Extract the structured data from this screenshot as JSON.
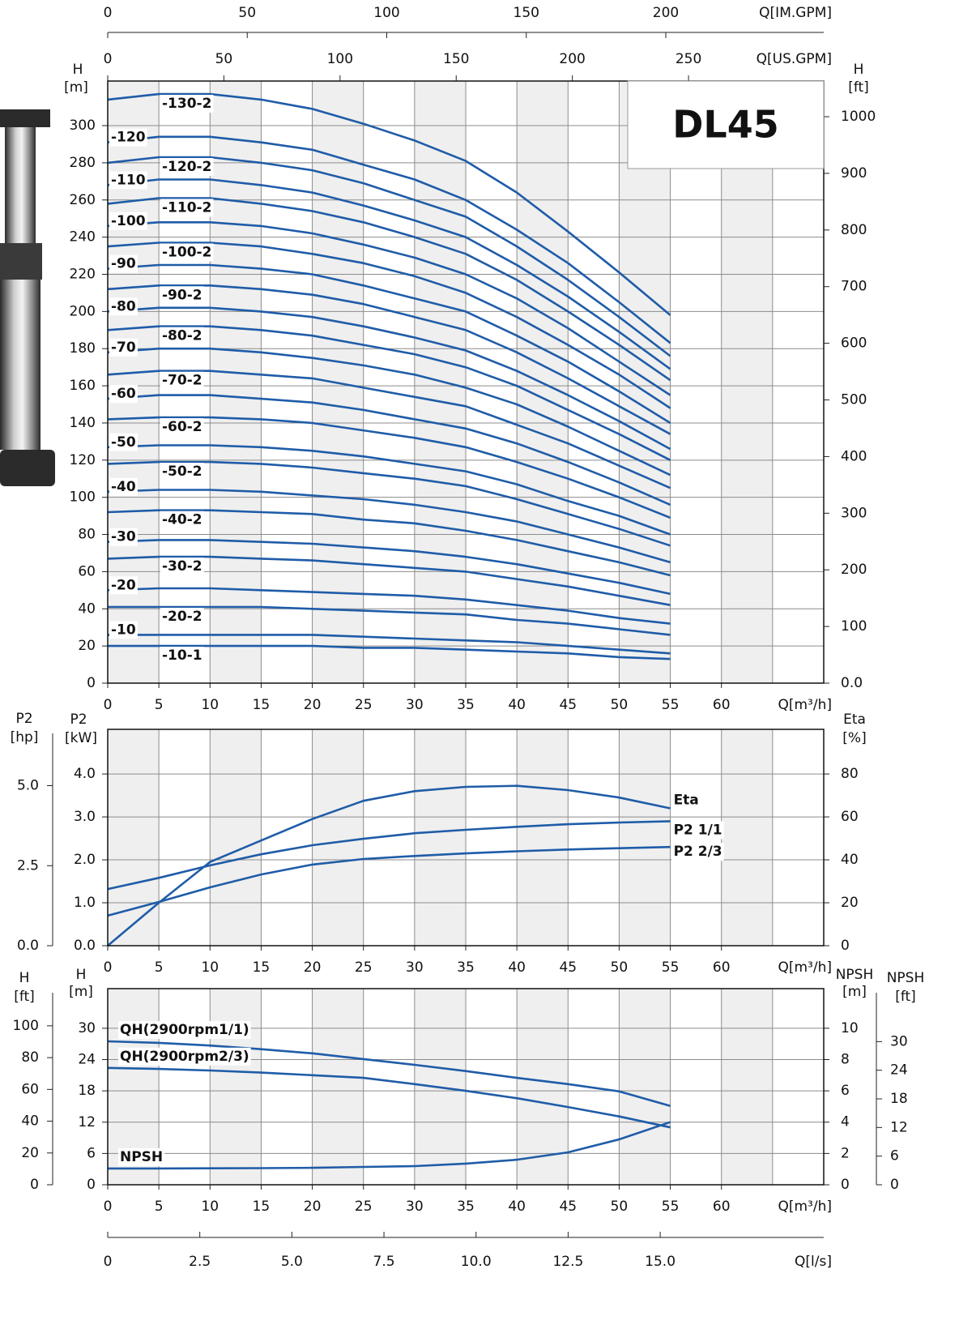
{
  "chart_data": [
    {
      "type": "line",
      "title": "DL45",
      "x": [
        0,
        5,
        10,
        15,
        20,
        25,
        30,
        35,
        40,
        45,
        50,
        55
      ],
      "xlim": [
        0,
        70
      ],
      "xticks": [
        0,
        5,
        10,
        15,
        20,
        25,
        30,
        35,
        40,
        45,
        50,
        55,
        60
      ],
      "xlabel": "Q[m³/h]",
      "ylabel": "H",
      "yunit": "[m]",
      "ylim": [
        0,
        324
      ],
      "yticks": [
        0,
        20,
        40,
        60,
        80,
        100,
        120,
        140,
        160,
        180,
        200,
        220,
        240,
        260,
        280,
        300
      ],
      "y2label": "H",
      "y2unit": "[ft]",
      "y2lim": [
        0,
        1063
      ],
      "y2ticks": [
        {
          "value": 0,
          "label": "0.0"
        },
        100,
        200,
        300,
        400,
        500,
        600,
        700,
        800,
        900,
        1000
      ],
      "top_axes": [
        {
          "label": "Q[US.GPM]",
          "lim": [
            0,
            308.2
          ],
          "ticks": [
            0,
            50,
            100,
            150,
            200,
            250
          ]
        },
        {
          "label": "Q[IM.GPM]",
          "lim": [
            0,
            256.6
          ],
          "ticks": [
            0,
            50,
            100,
            150,
            200
          ]
        }
      ],
      "grid": true,
      "shaded_columns": true,
      "color": "#1f5ca8",
      "series": [
        {
          "name": "-130-2",
          "values": [
            314,
            317,
            317,
            314,
            309,
            301,
            292,
            281,
            264,
            243,
            221,
            198
          ]
        },
        {
          "name": "-120",
          "values": [
            291,
            294,
            294,
            291,
            287,
            279,
            271,
            260,
            244,
            226,
            205,
            183
          ]
        },
        {
          "name": "-120-2",
          "values": [
            280,
            283,
            283,
            280,
            276,
            269,
            260,
            251,
            235,
            217,
            197,
            176
          ]
        },
        {
          "name": "-110",
          "values": [
            268,
            271,
            271,
            268,
            264,
            257,
            249,
            240,
            225,
            208,
            189,
            169
          ]
        },
        {
          "name": "-110-2",
          "values": [
            258,
            261,
            261,
            258,
            254,
            248,
            240,
            231,
            217,
            200,
            182,
            163
          ]
        },
        {
          "name": "-100",
          "values": [
            246,
            248,
            248,
            246,
            242,
            236,
            229,
            220,
            207,
            191,
            173,
            155
          ]
        },
        {
          "name": "-100-2",
          "values": [
            235,
            237,
            237,
            235,
            231,
            226,
            219,
            210,
            197,
            182,
            166,
            148
          ]
        },
        {
          "name": "-90",
          "values": [
            223,
            225,
            225,
            223,
            220,
            214,
            207,
            200,
            187,
            173,
            157,
            140
          ]
        },
        {
          "name": "-90-2",
          "values": [
            212,
            214,
            214,
            212,
            209,
            204,
            197,
            190,
            178,
            164,
            149,
            134
          ]
        },
        {
          "name": "-80",
          "values": [
            200,
            202,
            202,
            200,
            197,
            192,
            186,
            179,
            168,
            155,
            141,
            126
          ]
        },
        {
          "name": "-80-2",
          "values": [
            190,
            192,
            192,
            190,
            187,
            182,
            177,
            170,
            160,
            147,
            134,
            120
          ]
        },
        {
          "name": "-70",
          "values": [
            178,
            180,
            180,
            178,
            175,
            171,
            166,
            159,
            150,
            138,
            125,
            112
          ]
        },
        {
          "name": "-70-2",
          "values": [
            166,
            168,
            168,
            166,
            164,
            159,
            154,
            149,
            139,
            129,
            117,
            105
          ]
        },
        {
          "name": "-60",
          "values": [
            153,
            155,
            155,
            153,
            151,
            147,
            142,
            137,
            129,
            119,
            108,
            96
          ]
        },
        {
          "name": "-60-2",
          "values": [
            142,
            143,
            143,
            142,
            140,
            136,
            132,
            127,
            119,
            110,
            100,
            89
          ]
        },
        {
          "name": "-50",
          "values": [
            127,
            128,
            128,
            127,
            125,
            122,
            118,
            114,
            107,
            98,
            90,
            80
          ]
        },
        {
          "name": "-50-2",
          "values": [
            118,
            119,
            119,
            118,
            116,
            113,
            110,
            106,
            99,
            91,
            83,
            74
          ]
        },
        {
          "name": "-40",
          "values": [
            103,
            104,
            104,
            103,
            101,
            99,
            96,
            92,
            87,
            80,
            73,
            65
          ]
        },
        {
          "name": "-40-2",
          "values": [
            92,
            93,
            93,
            92,
            91,
            88,
            86,
            82,
            77,
            71,
            65,
            58
          ]
        },
        {
          "name": "-30",
          "values": [
            76,
            77,
            77,
            76,
            75,
            73,
            71,
            68,
            64,
            59,
            54,
            48
          ]
        },
        {
          "name": "-30-2",
          "values": [
            67,
            68,
            68,
            67,
            66,
            64,
            62,
            60,
            56,
            52,
            47,
            42
          ]
        },
        {
          "name": "-20",
          "values": [
            50,
            51,
            51,
            50,
            49,
            48,
            47,
            45,
            42,
            39,
            35,
            32
          ]
        },
        {
          "name": "-20-2",
          "values": [
            41,
            41,
            41,
            41,
            40,
            39,
            38,
            37,
            34,
            32,
            29,
            26
          ]
        },
        {
          "name": "-10",
          "values": [
            26,
            26,
            26,
            26,
            26,
            25,
            24,
            23,
            22,
            20,
            18,
            16
          ]
        },
        {
          "name": "-10-1",
          "values": [
            20,
            20,
            20,
            20,
            20,
            19,
            19,
            18,
            17,
            16,
            14,
            13
          ]
        }
      ]
    },
    {
      "type": "line",
      "x": [
        0,
        5,
        10,
        15,
        20,
        25,
        30,
        35,
        40,
        45,
        50,
        55
      ],
      "xlim": [
        0,
        70
      ],
      "xticks": [
        0,
        5,
        10,
        15,
        20,
        25,
        30,
        35,
        40,
        45,
        50,
        55,
        60
      ],
      "xlabel": "Q[m³/h]",
      "ylabel": "P2",
      "yunit": "[kW]",
      "ylim": [
        0,
        5.04
      ],
      "yticks": [
        {
          "value": 0,
          "label": "0.0"
        },
        {
          "value": 1,
          "label": "1.0"
        },
        {
          "value": 2,
          "label": "2.0"
        },
        {
          "value": 3,
          "label": "3.0"
        },
        {
          "value": 4,
          "label": "4.0"
        }
      ],
      "y2label": "Eta",
      "y2unit": "[%]",
      "y2lim": [
        0,
        100.8
      ],
      "y2ticks": [
        0,
        20,
        40,
        60,
        80
      ],
      "outer_axes": [
        {
          "label": "P2",
          "unit": "[hp]",
          "lim": [
            0,
            6.76
          ],
          "ticks": [
            {
              "value": 0,
              "label": "0.0"
            },
            2.5,
            {
              "value": 5,
              "label": "5.0"
            }
          ]
        }
      ],
      "grid": true,
      "shaded_columns": true,
      "color": "#1f5ca8",
      "series": [
        {
          "name": "Eta",
          "axis": "y2",
          "values": [
            0,
            20,
            39,
            49,
            59,
            67.5,
            72,
            74,
            74.5,
            72.5,
            69,
            64
          ]
        },
        {
          "name": "P2 1/1",
          "values": [
            1.32,
            1.58,
            1.87,
            2.13,
            2.34,
            2.49,
            2.62,
            2.7,
            2.77,
            2.83,
            2.87,
            2.9
          ]
        },
        {
          "name": "P2 2/3",
          "values": [
            0.7,
            1.02,
            1.36,
            1.66,
            1.89,
            2.02,
            2.09,
            2.15,
            2.2,
            2.24,
            2.27,
            2.3
          ]
        }
      ]
    },
    {
      "type": "line",
      "x": [
        0,
        5,
        10,
        15,
        20,
        25,
        30,
        35,
        40,
        45,
        50,
        55
      ],
      "xlim": [
        0,
        70
      ],
      "xticks": [
        0,
        5,
        10,
        15,
        20,
        25,
        30,
        35,
        40,
        45,
        50,
        55,
        60
      ],
      "xlabel": "Q[m³/h]",
      "ylabel": "H",
      "yunit": "[m]",
      "ylim": [
        0,
        37.6
      ],
      "yticks": [
        0,
        6,
        12,
        18,
        24,
        30
      ],
      "y2label": "NPSH",
      "y2unit": "[m]",
      "y2lim": [
        0,
        12.53
      ],
      "y2ticks": [
        0,
        2,
        4,
        6,
        8,
        10
      ],
      "outer_axes": [
        {
          "label": "H",
          "unit": "[ft]",
          "lim": [
            0,
            123.4
          ],
          "ticks": [
            0,
            20,
            40,
            60,
            80,
            100
          ]
        },
        {
          "label": "NPSH",
          "unit": "[ft]",
          "lim": [
            0,
            41.1
          ],
          "ticks": [
            0,
            6,
            12,
            18,
            24,
            30
          ]
        }
      ],
      "bottom_axis": {
        "label": "Q[l/s]",
        "lim": [
          0,
          19.44
        ],
        "ticks": [
          0,
          2.5,
          {
            "value": 5,
            "label": "5.0"
          },
          7.5,
          {
            "value": 10,
            "label": "10.0"
          },
          12.5,
          {
            "value": 15,
            "label": "15.0"
          }
        ]
      },
      "grid": true,
      "shaded_columns": true,
      "color": "#1f5ca8",
      "series": [
        {
          "name": "QH(2900rpm1/1)",
          "values": [
            27.5,
            27.2,
            26.7,
            26,
            25.2,
            24.1,
            23,
            21.8,
            20.5,
            19.3,
            17.9,
            15.1
          ]
        },
        {
          "name": "QH(2900rpm2/3)",
          "values": [
            22.4,
            22.2,
            21.9,
            21.5,
            21,
            20.5,
            19.3,
            18,
            16.6,
            14.9,
            13.1,
            11
          ]
        },
        {
          "name": "NPSH",
          "axis": "y2",
          "values": [
            1.04,
            1.04,
            1.05,
            1.06,
            1.08,
            1.14,
            1.19,
            1.35,
            1.6,
            2.07,
            2.9,
            4
          ]
        }
      ]
    }
  ]
}
